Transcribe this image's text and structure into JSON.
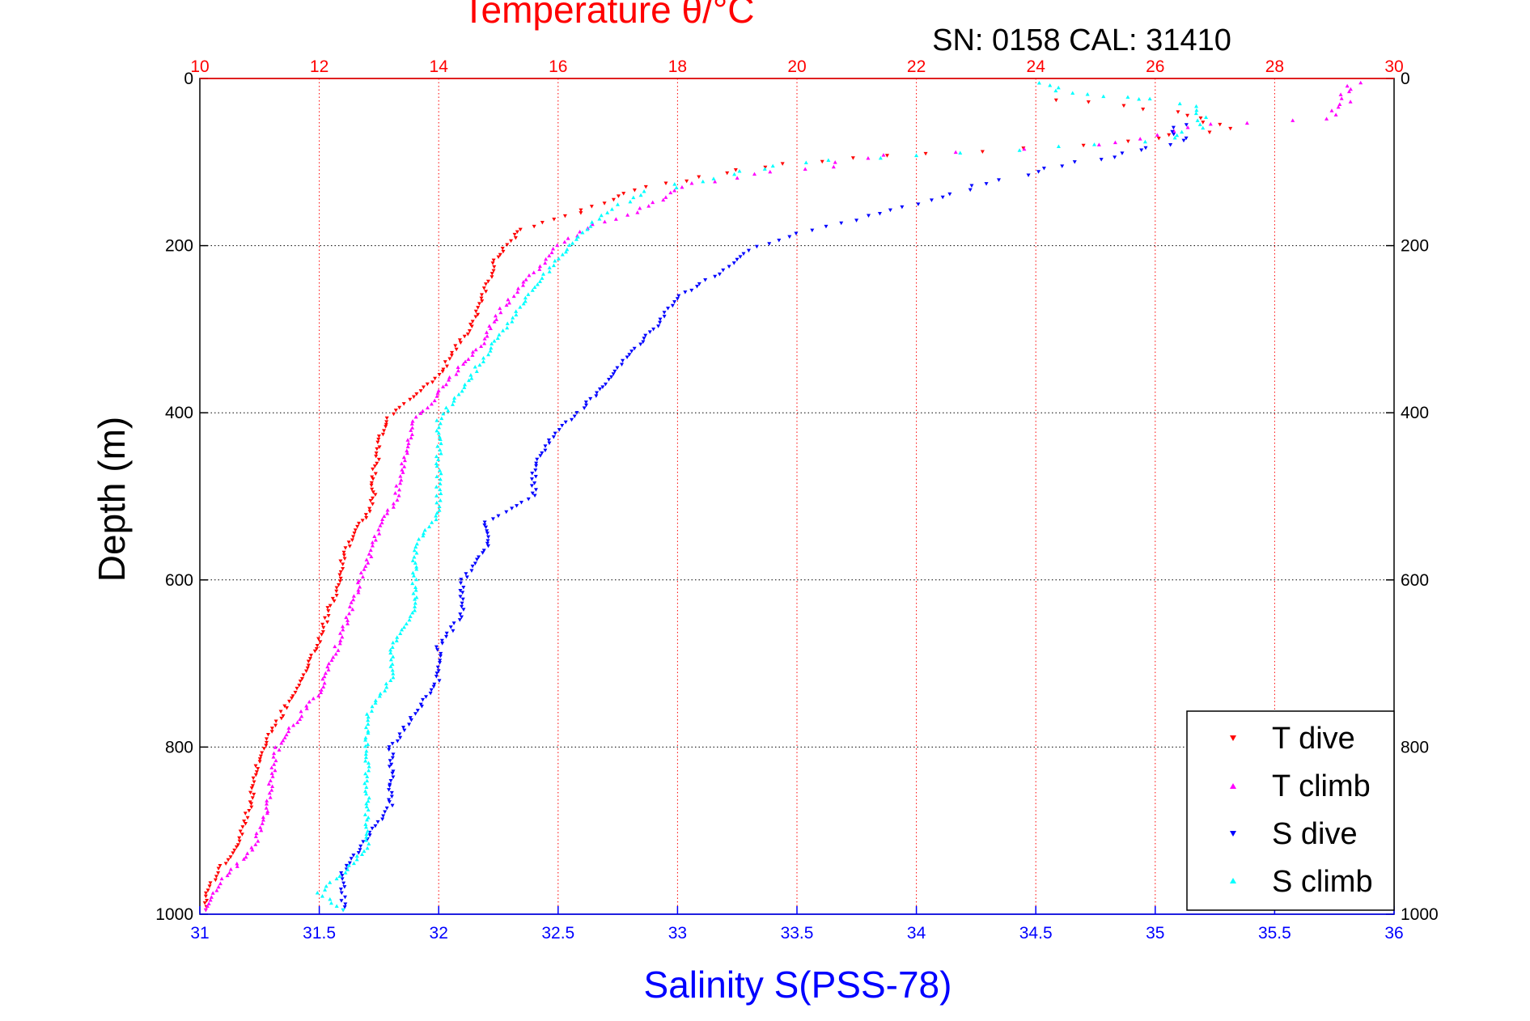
{
  "chart_data": {
    "type": "scatter",
    "title": "Temperature θ/°C",
    "subtitle": "SN: 0158  CAL: 31410",
    "ylabel": "Depth (m)",
    "xlabel": "Salinity S(PSS-78)",
    "ylim": [
      0,
      1000
    ],
    "y_reversed": true,
    "y_ticks": [
      0,
      200,
      400,
      600,
      800,
      1000
    ],
    "x_bottom_ticks": [
      31,
      31.5,
      32,
      32.5,
      33,
      33.5,
      34,
      34.5,
      35,
      35.5,
      36
    ],
    "x_bottom_lim": [
      31,
      36
    ],
    "x_top_ticks": [
      10,
      12,
      14,
      16,
      18,
      20,
      22,
      24,
      26,
      28,
      30
    ],
    "x_top_lim": [
      10,
      30
    ],
    "grid": true,
    "legend_position": "bottom-right",
    "colors": {
      "temperature_axis": "#ff0000",
      "salinity_axis": "#0000ff"
    },
    "series": [
      {
        "name": "T dive",
        "color": "#ff0000",
        "marker": "triangle-down",
        "axis": "top",
        "points": [
          [
            24.5,
            25
          ],
          [
            26.3,
            40
          ],
          [
            27.2,
            60
          ],
          [
            25.5,
            75
          ],
          [
            23.0,
            88
          ],
          [
            20.8,
            95
          ],
          [
            19.0,
            110
          ],
          [
            17.5,
            130
          ],
          [
            16.8,
            145
          ],
          [
            16.1,
            165
          ],
          [
            15.4,
            180
          ],
          [
            15.0,
            210
          ],
          [
            14.8,
            250
          ],
          [
            14.6,
            290
          ],
          [
            14.3,
            320
          ],
          [
            14.0,
            355
          ],
          [
            13.5,
            385
          ],
          [
            13.1,
            410
          ],
          [
            13.0,
            440
          ],
          [
            12.9,
            480
          ],
          [
            12.9,
            510
          ],
          [
            12.6,
            540
          ],
          [
            12.4,
            570
          ],
          [
            12.3,
            610
          ],
          [
            12.1,
            650
          ],
          [
            11.9,
            690
          ],
          [
            11.6,
            730
          ],
          [
            11.3,
            770
          ],
          [
            11.0,
            810
          ],
          [
            10.9,
            850
          ],
          [
            10.8,
            880
          ],
          [
            10.6,
            920
          ],
          [
            10.3,
            950
          ],
          [
            10.1,
            975
          ],
          [
            10.1,
            995
          ]
        ]
      },
      {
        "name": "T climb",
        "color": "#ff00ff",
        "marker": "triangle-up",
        "axis": "top",
        "points": [
          [
            29.3,
            5
          ],
          [
            29.2,
            20
          ],
          [
            29.1,
            35
          ],
          [
            29.0,
            48
          ],
          [
            27.0,
            55
          ],
          [
            25.0,
            80
          ],
          [
            21.3,
            92
          ],
          [
            20.5,
            105
          ],
          [
            19.2,
            115
          ],
          [
            18.0,
            130
          ],
          [
            17.3,
            160
          ],
          [
            16.6,
            175
          ],
          [
            16.0,
            200
          ],
          [
            15.5,
            240
          ],
          [
            15.0,
            280
          ],
          [
            14.7,
            320
          ],
          [
            14.3,
            350
          ],
          [
            13.9,
            385
          ],
          [
            13.6,
            410
          ],
          [
            13.4,
            460
          ],
          [
            13.3,
            500
          ],
          [
            13.0,
            540
          ],
          [
            12.8,
            580
          ],
          [
            12.6,
            620
          ],
          [
            12.4,
            660
          ],
          [
            12.2,
            700
          ],
          [
            12.0,
            735
          ],
          [
            11.6,
            770
          ],
          [
            11.3,
            800
          ],
          [
            11.2,
            840
          ],
          [
            11.1,
            880
          ],
          [
            10.9,
            920
          ],
          [
            10.5,
            950
          ],
          [
            10.2,
            975
          ],
          [
            10.1,
            995
          ]
        ]
      },
      {
        "name": "S dive",
        "color": "#0000ff",
        "marker": "triangle-down",
        "axis": "bottom",
        "points": [
          [
            35.1,
            55
          ],
          [
            35.1,
            75
          ],
          [
            34.9,
            90
          ],
          [
            34.7,
            100
          ],
          [
            34.5,
            112
          ],
          [
            34.3,
            125
          ],
          [
            34.0,
            150
          ],
          [
            33.8,
            165
          ],
          [
            33.5,
            185
          ],
          [
            33.3,
            205
          ],
          [
            33.2,
            230
          ],
          [
            33.0,
            260
          ],
          [
            32.9,
            300
          ],
          [
            32.8,
            330
          ],
          [
            32.7,
            365
          ],
          [
            32.6,
            395
          ],
          [
            32.5,
            420
          ],
          [
            32.4,
            460
          ],
          [
            32.4,
            500
          ],
          [
            32.2,
            530
          ],
          [
            32.2,
            560
          ],
          [
            32.1,
            600
          ],
          [
            32.1,
            640
          ],
          [
            32.0,
            680
          ],
          [
            32.0,
            720
          ],
          [
            31.9,
            760
          ],
          [
            31.8,
            800
          ],
          [
            31.8,
            840
          ],
          [
            31.8,
            870
          ],
          [
            31.7,
            910
          ],
          [
            31.6,
            950
          ],
          [
            31.6,
            975
          ],
          [
            31.6,
            995
          ]
        ]
      },
      {
        "name": "S climb",
        "color": "#00ffff",
        "marker": "triangle-up",
        "axis": "bottom",
        "points": [
          [
            34.5,
            5
          ],
          [
            34.6,
            15
          ],
          [
            34.8,
            22
          ],
          [
            35.0,
            25
          ],
          [
            35.2,
            38
          ],
          [
            35.2,
            55
          ],
          [
            35.1,
            72
          ],
          [
            34.6,
            82
          ],
          [
            34.0,
            92
          ],
          [
            33.5,
            100
          ],
          [
            33.2,
            115
          ],
          [
            32.9,
            135
          ],
          [
            32.7,
            160
          ],
          [
            32.6,
            185
          ],
          [
            32.5,
            215
          ],
          [
            32.4,
            250
          ],
          [
            32.3,
            290
          ],
          [
            32.2,
            330
          ],
          [
            32.1,
            370
          ],
          [
            32.0,
            410
          ],
          [
            32.0,
            440
          ],
          [
            32.0,
            480
          ],
          [
            32.0,
            520
          ],
          [
            31.9,
            560
          ],
          [
            31.9,
            600
          ],
          [
            31.9,
            640
          ],
          [
            31.8,
            680
          ],
          [
            31.8,
            720
          ],
          [
            31.7,
            760
          ],
          [
            31.7,
            800
          ],
          [
            31.7,
            840
          ],
          [
            31.7,
            880
          ],
          [
            31.7,
            920
          ],
          [
            31.6,
            950
          ],
          [
            31.5,
            975
          ],
          [
            31.6,
            995
          ]
        ]
      }
    ]
  }
}
